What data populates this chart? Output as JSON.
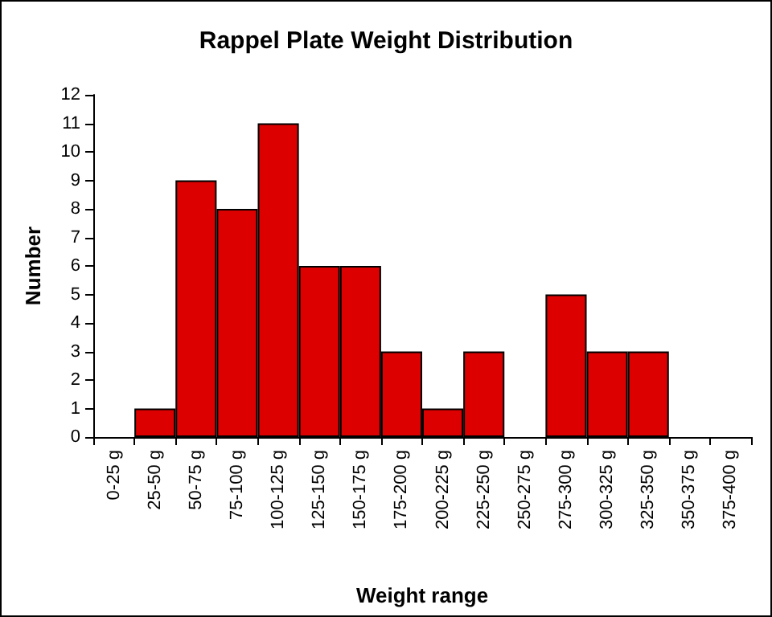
{
  "chart_data": {
    "type": "bar",
    "title": "Rappel Plate Weight Distribution",
    "xlabel": "Weight range",
    "ylabel": "Number",
    "categories": [
      "0-25 g",
      "25-50 g",
      "50-75 g",
      "75-100 g",
      "100-125 g",
      "125-150 g",
      "150-175 g",
      "175-200 g",
      "200-225 g",
      "225-250 g",
      "250-275 g",
      "275-300 g",
      "300-325 g",
      "325-350 g",
      "350-375 g",
      "375-400 g"
    ],
    "values": [
      0,
      1,
      9,
      8,
      11,
      6,
      6,
      3,
      1,
      3,
      0,
      5,
      3,
      3,
      0,
      0
    ],
    "color": "#dd0000",
    "ylim": [
      0,
      12
    ],
    "yticks": [
      0,
      1,
      2,
      3,
      4,
      5,
      6,
      7,
      8,
      9,
      10,
      11,
      12
    ],
    "grid": false
  }
}
